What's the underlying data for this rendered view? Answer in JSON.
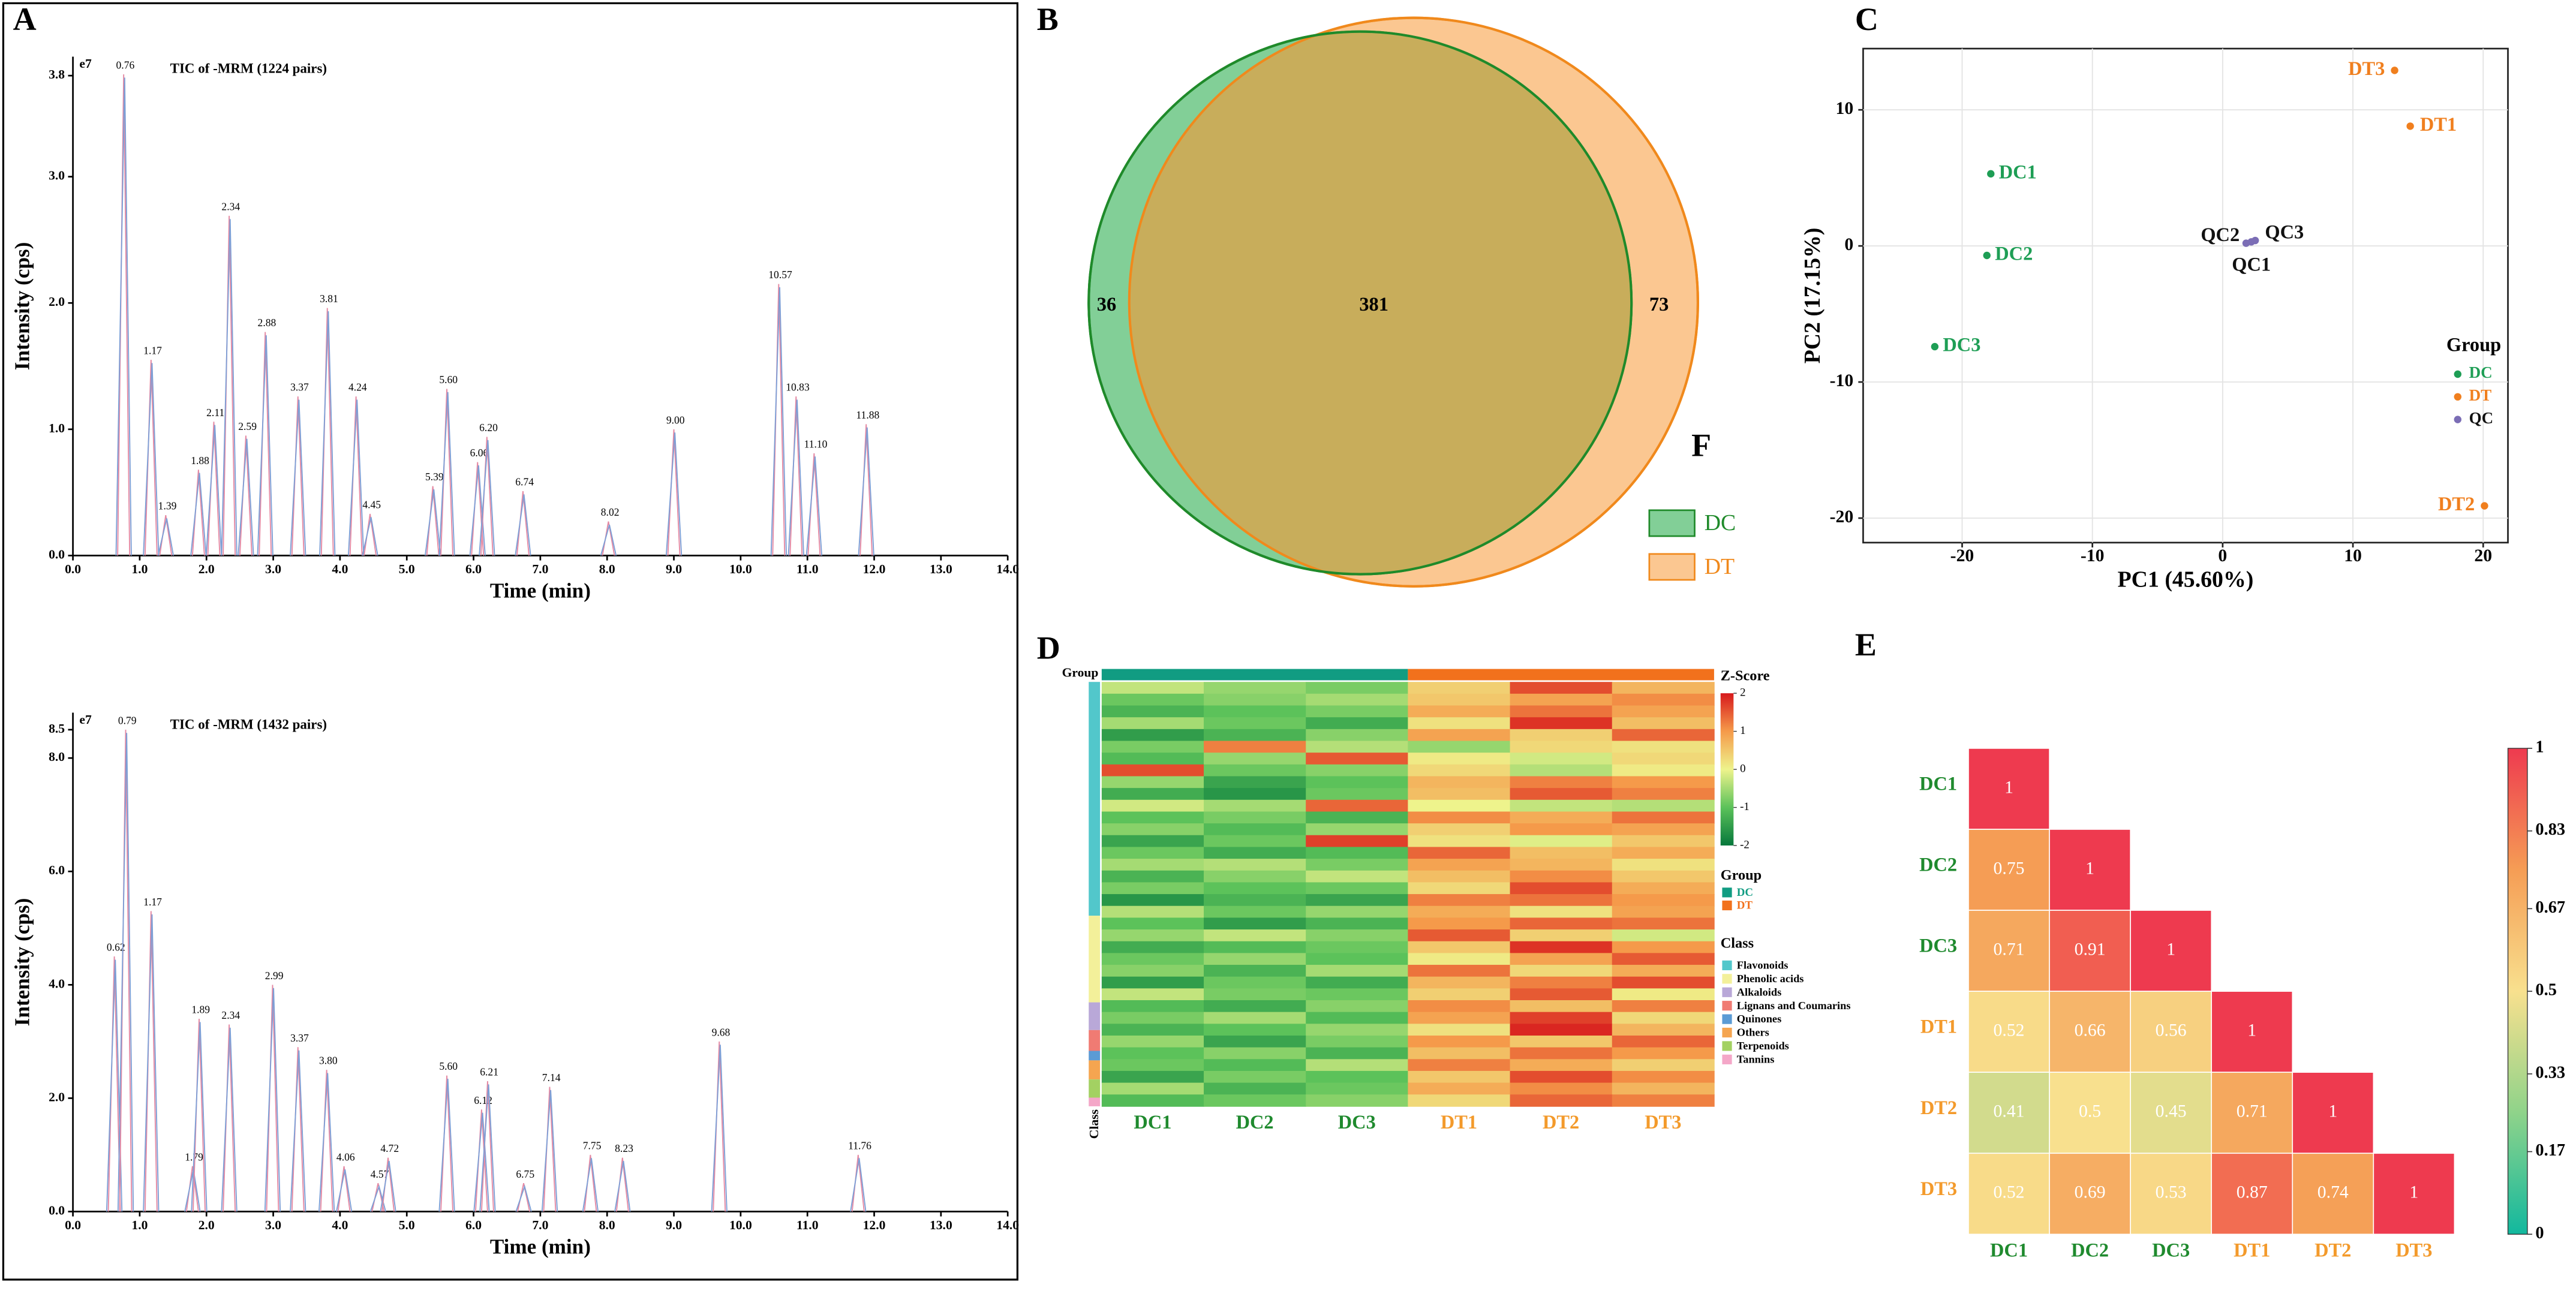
{
  "chart_data": [
    {
      "type": "line",
      "panel": "A",
      "title": "TIC of -MRM (1224 pairs)",
      "y_exponent": "e7",
      "xlabel": "Time (min)",
      "ylabel": "Intensity (cps)",
      "xlim": [
        0,
        14
      ],
      "ylim": [
        0,
        3.95
      ],
      "xticks": [
        {
          "value": 0,
          "label": "0.0"
        },
        {
          "value": 1,
          "label": "1.0"
        },
        {
          "value": 2,
          "label": "2.0"
        },
        {
          "value": 3,
          "label": "3.0"
        },
        {
          "value": 4,
          "label": "4.0"
        },
        {
          "value": 5,
          "label": "5.0"
        },
        {
          "value": 6,
          "label": "6.0"
        },
        {
          "value": 7,
          "label": "7.0"
        },
        {
          "value": 8,
          "label": "8.0"
        },
        {
          "value": 9,
          "label": "9.0"
        },
        {
          "value": 10,
          "label": "10.0"
        },
        {
          "value": 11,
          "label": "11.0"
        },
        {
          "value": 12,
          "label": "12.0"
        },
        {
          "value": 13,
          "label": "13.0"
        },
        {
          "value": 14,
          "label": "14.0"
        }
      ],
      "yticks": [
        {
          "value": 0,
          "label": "0.0"
        },
        {
          "value": 1,
          "label": "1.0"
        },
        {
          "value": 2,
          "label": "2.0"
        },
        {
          "value": 3,
          "label": "3.0"
        },
        {
          "value": 3.8,
          "label": "3.8"
        }
      ],
      "colors": [
        "#e58aa4",
        "#7d9fd6"
      ],
      "x": [
        0.76,
        1.17,
        1.39,
        1.88,
        2.11,
        2.34,
        2.59,
        2.88,
        3.37,
        3.81,
        4.24,
        4.45,
        5.39,
        5.6,
        6.06,
        6.2,
        6.74,
        8.02,
        9.0,
        10.57,
        10.83,
        11.1,
        11.88
      ],
      "peak_labels": [
        "0.76",
        "1.17",
        "1.39",
        "1.88",
        "2.11",
        "2.34",
        "2.59",
        "2.88",
        "3.37",
        "3.81",
        "4.24",
        "4.45",
        "5.39",
        "5.60",
        "6.06",
        "6.20",
        "6.74",
        "8.02",
        "9.00",
        "10.57",
        "10.83",
        "11.10",
        "11.88"
      ],
      "values": [
        3.81,
        1.55,
        0.32,
        0.68,
        1.06,
        2.69,
        0.95,
        1.77,
        1.26,
        1.96,
        1.26,
        0.33,
        0.55,
        1.32,
        0.74,
        0.94,
        0.51,
        0.27,
        1.0,
        2.15,
        1.26,
        0.81,
        1.04
      ]
    },
    {
      "type": "line",
      "title": "TIC of -MRM (1432 pairs)",
      "y_exponent": "e7",
      "xlabel": "Time (min)",
      "ylabel": "Intensity (cps)",
      "xlim": [
        0,
        14
      ],
      "ylim": [
        0,
        8.8
      ],
      "xticks": [
        {
          "value": 0,
          "label": "0.0"
        },
        {
          "value": 1,
          "label": "1.0"
        },
        {
          "value": 2,
          "label": "2.0"
        },
        {
          "value": 3,
          "label": "3.0"
        },
        {
          "value": 4,
          "label": "4.0"
        },
        {
          "value": 5,
          "label": "5.0"
        },
        {
          "value": 6,
          "label": "6.0"
        },
        {
          "value": 7,
          "label": "7.0"
        },
        {
          "value": 8,
          "label": "8.0"
        },
        {
          "value": 9,
          "label": "9.0"
        },
        {
          "value": 10,
          "label": "10.0"
        },
        {
          "value": 11,
          "label": "11.0"
        },
        {
          "value": 12,
          "label": "12.0"
        },
        {
          "value": 13,
          "label": "13.0"
        },
        {
          "value": 14,
          "label": "14.0"
        }
      ],
      "yticks": [
        {
          "value": 0,
          "label": "0.0"
        },
        {
          "value": 2,
          "label": "2.0"
        },
        {
          "value": 4,
          "label": "4.0"
        },
        {
          "value": 6,
          "label": "6.0"
        },
        {
          "value": 8,
          "label": "8.0"
        },
        {
          "value": 8.5,
          "label": "8.5"
        }
      ],
      "colors": [
        "#e58aa4",
        "#7d9fd6"
      ],
      "x": [
        0.62,
        0.79,
        1.17,
        1.79,
        1.89,
        2.34,
        2.99,
        3.37,
        3.8,
        4.06,
        4.57,
        4.72,
        5.6,
        6.12,
        6.21,
        6.75,
        7.14,
        7.75,
        8.23,
        9.68,
        11.76
      ],
      "peak_labels": [
        "0.62",
        "0.79",
        "1.17",
        "1.79",
        "1.89",
        "2.34",
        "2.99",
        "3.37",
        "3.80",
        "4.06",
        "4.57",
        "4.72",
        "5.60",
        "6.12",
        "6.21",
        "6.75",
        "7.14",
        "7.75",
        "8.23",
        "9.68",
        "11.76"
      ],
      "values": [
        4.5,
        8.5,
        5.3,
        0.8,
        3.4,
        3.3,
        4.0,
        2.9,
        2.5,
        0.8,
        0.5,
        0.95,
        2.4,
        1.8,
        2.3,
        0.5,
        2.2,
        1.0,
        0.95,
        3.0,
        1.0
      ]
    },
    {
      "type": "venn",
      "panel": "B",
      "annotation": "F",
      "sets": [
        {
          "name": "DC",
          "color": "#82cf97",
          "stroke": "#1f8a2a"
        },
        {
          "name": "DT",
          "color": "#fbc791",
          "stroke": "#f0891c"
        }
      ],
      "overlap_color": "#c8ad5b",
      "values": [
        36,
        381,
        73
      ]
    },
    {
      "type": "scatter",
      "panel": "C",
      "xlabel": "PC1 (45.60%)",
      "ylabel": "PC2 (17.15%)",
      "legend_title": "Group",
      "xlim": [
        -27.6,
        21.9
      ],
      "ylim": [
        -21.8,
        14.5
      ],
      "xticks": [
        -20,
        -10,
        0,
        10,
        20
      ],
      "yticks": [
        -20,
        -10,
        0,
        10
      ],
      "grid": true,
      "series": [
        {
          "name": "DC",
          "color": "#1e9e55",
          "label_color": "#1e9e55",
          "point_labels": [
            "DC1",
            "DC2",
            "DC3"
          ],
          "x": [
            -17.8,
            -18.1,
            -22.1
          ],
          "values": [
            5.3,
            -0.7,
            -7.4
          ]
        },
        {
          "name": "DT",
          "color": "#f07f1e",
          "label_color": "#f07f1e",
          "point_labels": [
            "DT1",
            "DT2",
            "DT3"
          ],
          "x": [
            14.4,
            20.1,
            13.2
          ],
          "values": [
            8.8,
            -19.1,
            12.9
          ]
        },
        {
          "name": "QC",
          "color": "#7b6db5",
          "label_color": "#111111",
          "point_labels": [
            "QC1",
            "QC2",
            "QC3"
          ],
          "x": [
            2.2,
            1.8,
            2.5
          ],
          "values": [
            0.3,
            0.2,
            0.4
          ]
        }
      ]
    },
    {
      "type": "heatmap",
      "panel": "D",
      "group_title": "Group",
      "class_title": "Class",
      "colorbar_title": "Z-Score",
      "columns": [
        "DC1",
        "DC2",
        "DC3",
        "DT1",
        "DT2",
        "DT3"
      ],
      "column_label_colors": [
        "#1f8a2e",
        "#1f8a2e",
        "#1f8a2e",
        "#f39a2b",
        "#f39a2b",
        "#f39a2b"
      ],
      "groups": [
        {
          "name": "DC",
          "color": "#119c82",
          "columns": 3
        },
        {
          "name": "DT",
          "color": "#f2711c",
          "columns": 3
        }
      ],
      "classes": [
        {
          "name": "Flavonoids",
          "color": "#52c7cb",
          "count": 270
        },
        {
          "name": "Phenolic acids",
          "color": "#f3f09a",
          "count": 100
        },
        {
          "name": "Alkaloids",
          "color": "#b9a8d8",
          "count": 32
        },
        {
          "name": "Lignans and Coumarins",
          "color": "#f07b73",
          "count": 24
        },
        {
          "name": "Quinones",
          "color": "#5b9bd5",
          "count": 11
        },
        {
          "name": "Others",
          "color": "#f5a550",
          "count": 22
        },
        {
          "name": "Terpenoids",
          "color": "#a3d162",
          "count": 21
        },
        {
          "name": "Tannins",
          "color": "#f4a7c8",
          "count": 10
        }
      ],
      "zlim": [
        -2,
        2
      ],
      "zticks": [
        -2,
        -1,
        0,
        1,
        2
      ],
      "colors": [
        "#06783c",
        "#5cc25a",
        "#eef38c",
        "#f59a4a",
        "#d7191c"
      ],
      "values": [
        [
          -0.3,
          -0.6,
          -0.8,
          0.4,
          1.6,
          0.7
        ],
        [
          -0.9,
          -0.7,
          -0.5,
          0.5,
          0.9,
          1.1
        ],
        [
          -1.2,
          -1.0,
          -0.8,
          0.8,
          1.3,
          0.9
        ],
        [
          -0.5,
          -0.9,
          -1.3,
          0.2,
          1.8,
          0.6
        ],
        [
          -1.5,
          -1.2,
          -0.7,
          0.9,
          0.4,
          1.4
        ],
        [
          -0.8,
          1.2,
          -0.4,
          -0.6,
          0.3,
          0.2
        ],
        [
          -1.1,
          -0.6,
          1.5,
          0.1,
          -0.2,
          0.3
        ],
        [
          1.6,
          -0.9,
          -0.7,
          0.3,
          -0.4,
          0.1
        ],
        [
          -0.6,
          -1.4,
          -1.0,
          0.7,
          1.2,
          1.0
        ],
        [
          -1.3,
          -1.6,
          -0.9,
          0.6,
          1.5,
          1.2
        ],
        [
          -0.2,
          -0.5,
          1.4,
          0.0,
          -0.3,
          -0.4
        ],
        [
          -1.0,
          -0.8,
          -1.2,
          1.1,
          0.8,
          1.3
        ],
        [
          -0.7,
          -1.1,
          -0.6,
          0.4,
          1.0,
          0.9
        ],
        [
          -1.4,
          -0.9,
          1.7,
          0.2,
          -0.1,
          0.5
        ],
        [
          -0.9,
          -1.3,
          -1.1,
          1.4,
          0.6,
          0.8
        ],
        [
          -0.5,
          -0.4,
          -0.8,
          0.9,
          0.7,
          0.2
        ],
        [
          -1.2,
          -0.7,
          -0.3,
          0.6,
          1.1,
          0.5
        ],
        [
          -0.8,
          -1.0,
          -0.9,
          0.3,
          1.6,
          0.8
        ],
        [
          -1.6,
          -1.2,
          -1.4,
          1.2,
          1.3,
          1.0
        ],
        [
          -0.4,
          -0.9,
          -0.6,
          0.8,
          0.2,
          0.9
        ],
        [
          -1.0,
          -1.5,
          -1.2,
          1.0,
          1.4,
          1.3
        ],
        [
          -0.6,
          -0.3,
          -0.7,
          1.5,
          0.4,
          -0.2
        ],
        [
          -1.3,
          -1.1,
          -0.9,
          0.5,
          1.8,
          1.0
        ],
        [
          -0.9,
          -0.6,
          -1.0,
          0.1,
          0.9,
          1.5
        ],
        [
          -0.7,
          -1.2,
          -0.5,
          1.3,
          0.3,
          0.8
        ],
        [
          -1.5,
          -0.9,
          -1.3,
          0.7,
          1.2,
          1.6
        ],
        [
          -0.3,
          -0.8,
          -0.9,
          0.4,
          1.5,
          0.1
        ],
        [
          -1.1,
          -1.3,
          -0.7,
          1.1,
          0.6,
          1.2
        ],
        [
          -0.8,
          -0.5,
          -1.1,
          0.9,
          1.7,
          0.3
        ],
        [
          -1.2,
          -1.0,
          -0.6,
          0.2,
          1.9,
          0.7
        ],
        [
          -0.6,
          -1.4,
          -0.8,
          1.0,
          0.5,
          1.4
        ],
        [
          -1.0,
          -0.7,
          -1.2,
          0.6,
          1.3,
          1.0
        ],
        [
          -0.9,
          -1.1,
          -0.4,
          1.2,
          0.8,
          0.4
        ],
        [
          -1.4,
          -0.8,
          -1.0,
          0.5,
          1.6,
          1.1
        ],
        [
          -0.5,
          -1.2,
          -0.9,
          0.8,
          1.1,
          0.7
        ],
        [
          -1.1,
          -0.9,
          -0.7,
          0.3,
          1.4,
          1.2
        ]
      ]
    },
    {
      "type": "correlation",
      "panel": "E",
      "labels": [
        "DC1",
        "DC2",
        "DC3",
        "DT1",
        "DT2",
        "DT3"
      ],
      "label_colors": [
        "#1f8a2e",
        "#1f8a2e",
        "#1f8a2e",
        "#f39a2b",
        "#f39a2b",
        "#f39a2b"
      ],
      "zlim": [
        0,
        1
      ],
      "zticks": [
        0,
        0.17,
        0.33,
        0.5,
        0.67,
        0.83,
        1
      ],
      "colors": [
        "#12b89e",
        "#8fd38a",
        "#f8e08e",
        "#f59d55",
        "#ee3a4f"
      ],
      "values": [
        [
          1
        ],
        [
          0.75,
          1
        ],
        [
          0.71,
          0.91,
          1
        ],
        [
          0.52,
          0.66,
          0.56,
          1
        ],
        [
          0.41,
          0.5,
          0.45,
          0.71,
          1
        ],
        [
          0.52,
          0.69,
          0.53,
          0.87,
          0.74,
          1
        ]
      ]
    }
  ]
}
